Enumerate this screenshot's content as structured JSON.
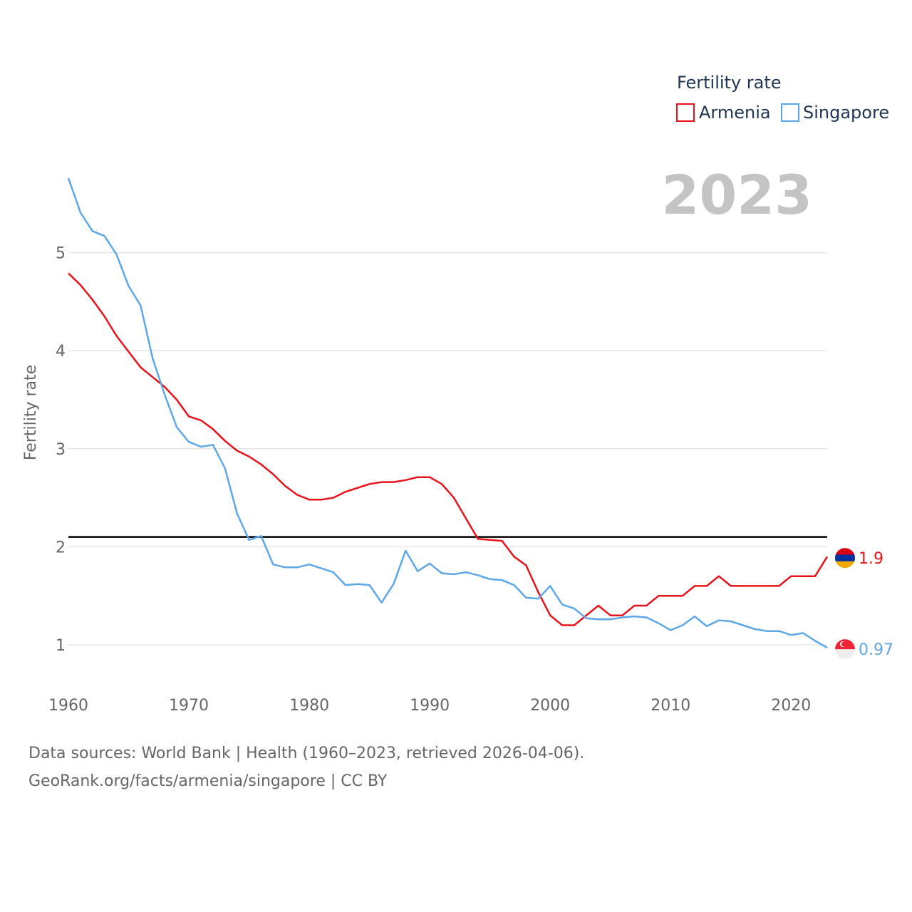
{
  "chart_data": {
    "type": "line",
    "ylabel": "Fertility rate",
    "xlabel": "",
    "xlim": [
      1960,
      2023
    ],
    "ylim": [
      0.5,
      5.8
    ],
    "xticks": [
      1960,
      1970,
      1980,
      1990,
      2000,
      2010,
      2020
    ],
    "yticks": [
      1,
      2,
      3,
      4,
      5
    ],
    "grid": true,
    "year_label": "2023",
    "legend": {
      "title": "Fertility rate",
      "position": "top-right"
    },
    "reference_line": {
      "y": 2.1,
      "color": "#000000"
    },
    "series": [
      {
        "name": "Armenia",
        "color": "#e8131a",
        "end_label": "1.9",
        "flag_colors": [
          "#d90012",
          "#0033a0",
          "#f2a800"
        ],
        "x": [
          1960,
          1961,
          1962,
          1963,
          1964,
          1965,
          1966,
          1967,
          1968,
          1969,
          1970,
          1971,
          1972,
          1973,
          1974,
          1975,
          1976,
          1977,
          1978,
          1979,
          1980,
          1981,
          1982,
          1983,
          1984,
          1985,
          1986,
          1987,
          1988,
          1989,
          1990,
          1991,
          1992,
          1993,
          1994,
          1995,
          1996,
          1997,
          1998,
          1999,
          2000,
          2001,
          2002,
          2003,
          2004,
          2005,
          2006,
          2007,
          2008,
          2009,
          2010,
          2011,
          2012,
          2013,
          2014,
          2015,
          2016,
          2017,
          2018,
          2019,
          2020,
          2021,
          2022,
          2023
        ],
        "values": [
          4.79,
          4.67,
          4.52,
          4.35,
          4.15,
          3.99,
          3.83,
          3.73,
          3.63,
          3.5,
          3.33,
          3.29,
          3.2,
          3.08,
          2.98,
          2.92,
          2.84,
          2.74,
          2.62,
          2.53,
          2.48,
          2.48,
          2.5,
          2.56,
          2.6,
          2.64,
          2.66,
          2.66,
          2.68,
          2.71,
          2.71,
          2.64,
          2.5,
          2.29,
          2.08,
          2.07,
          2.06,
          1.9,
          1.81,
          1.54,
          1.3,
          1.2,
          1.2,
          1.3,
          1.4,
          1.3,
          1.3,
          1.4,
          1.4,
          1.5,
          1.5,
          1.5,
          1.6,
          1.6,
          1.7,
          1.6,
          1.6,
          1.6,
          1.6,
          1.6,
          1.7,
          1.7,
          1.7,
          1.9
        ]
      },
      {
        "name": "Singapore",
        "color": "#5ea7e7",
        "end_label": "0.97",
        "flag_colors": [
          "#ee2536",
          "#eeeeee"
        ],
        "x": [
          1960,
          1961,
          1962,
          1963,
          1964,
          1965,
          1966,
          1967,
          1968,
          1969,
          1970,
          1971,
          1972,
          1973,
          1974,
          1975,
          1976,
          1977,
          1978,
          1979,
          1980,
          1981,
          1982,
          1983,
          1984,
          1985,
          1986,
          1987,
          1988,
          1989,
          1990,
          1991,
          1992,
          1993,
          1994,
          1995,
          1996,
          1997,
          1998,
          1999,
          2000,
          2001,
          2002,
          2003,
          2004,
          2005,
          2006,
          2007,
          2008,
          2009,
          2010,
          2011,
          2012,
          2013,
          2014,
          2015,
          2016,
          2017,
          2018,
          2019,
          2020,
          2021,
          2022,
          2023
        ],
        "values": [
          5.76,
          5.41,
          5.22,
          5.17,
          4.98,
          4.66,
          4.46,
          3.92,
          3.55,
          3.22,
          3.07,
          3.02,
          3.04,
          2.8,
          2.34,
          2.07,
          2.11,
          1.82,
          1.79,
          1.79,
          1.82,
          1.78,
          1.74,
          1.61,
          1.62,
          1.61,
          1.43,
          1.62,
          1.96,
          1.75,
          1.83,
          1.73,
          1.72,
          1.74,
          1.71,
          1.67,
          1.66,
          1.61,
          1.48,
          1.47,
          1.6,
          1.41,
          1.37,
          1.27,
          1.26,
          1.26,
          1.28,
          1.29,
          1.28,
          1.22,
          1.15,
          1.2,
          1.29,
          1.19,
          1.25,
          1.24,
          1.2,
          1.16,
          1.14,
          1.14,
          1.1,
          1.12,
          1.04,
          0.97
        ]
      }
    ]
  },
  "source": {
    "line1": "Data sources: World Bank | Health (1960–2023, retrieved 2026-04-06).",
    "line2": "GeoRank.org/facts/armenia/singapore | CC BY"
  }
}
